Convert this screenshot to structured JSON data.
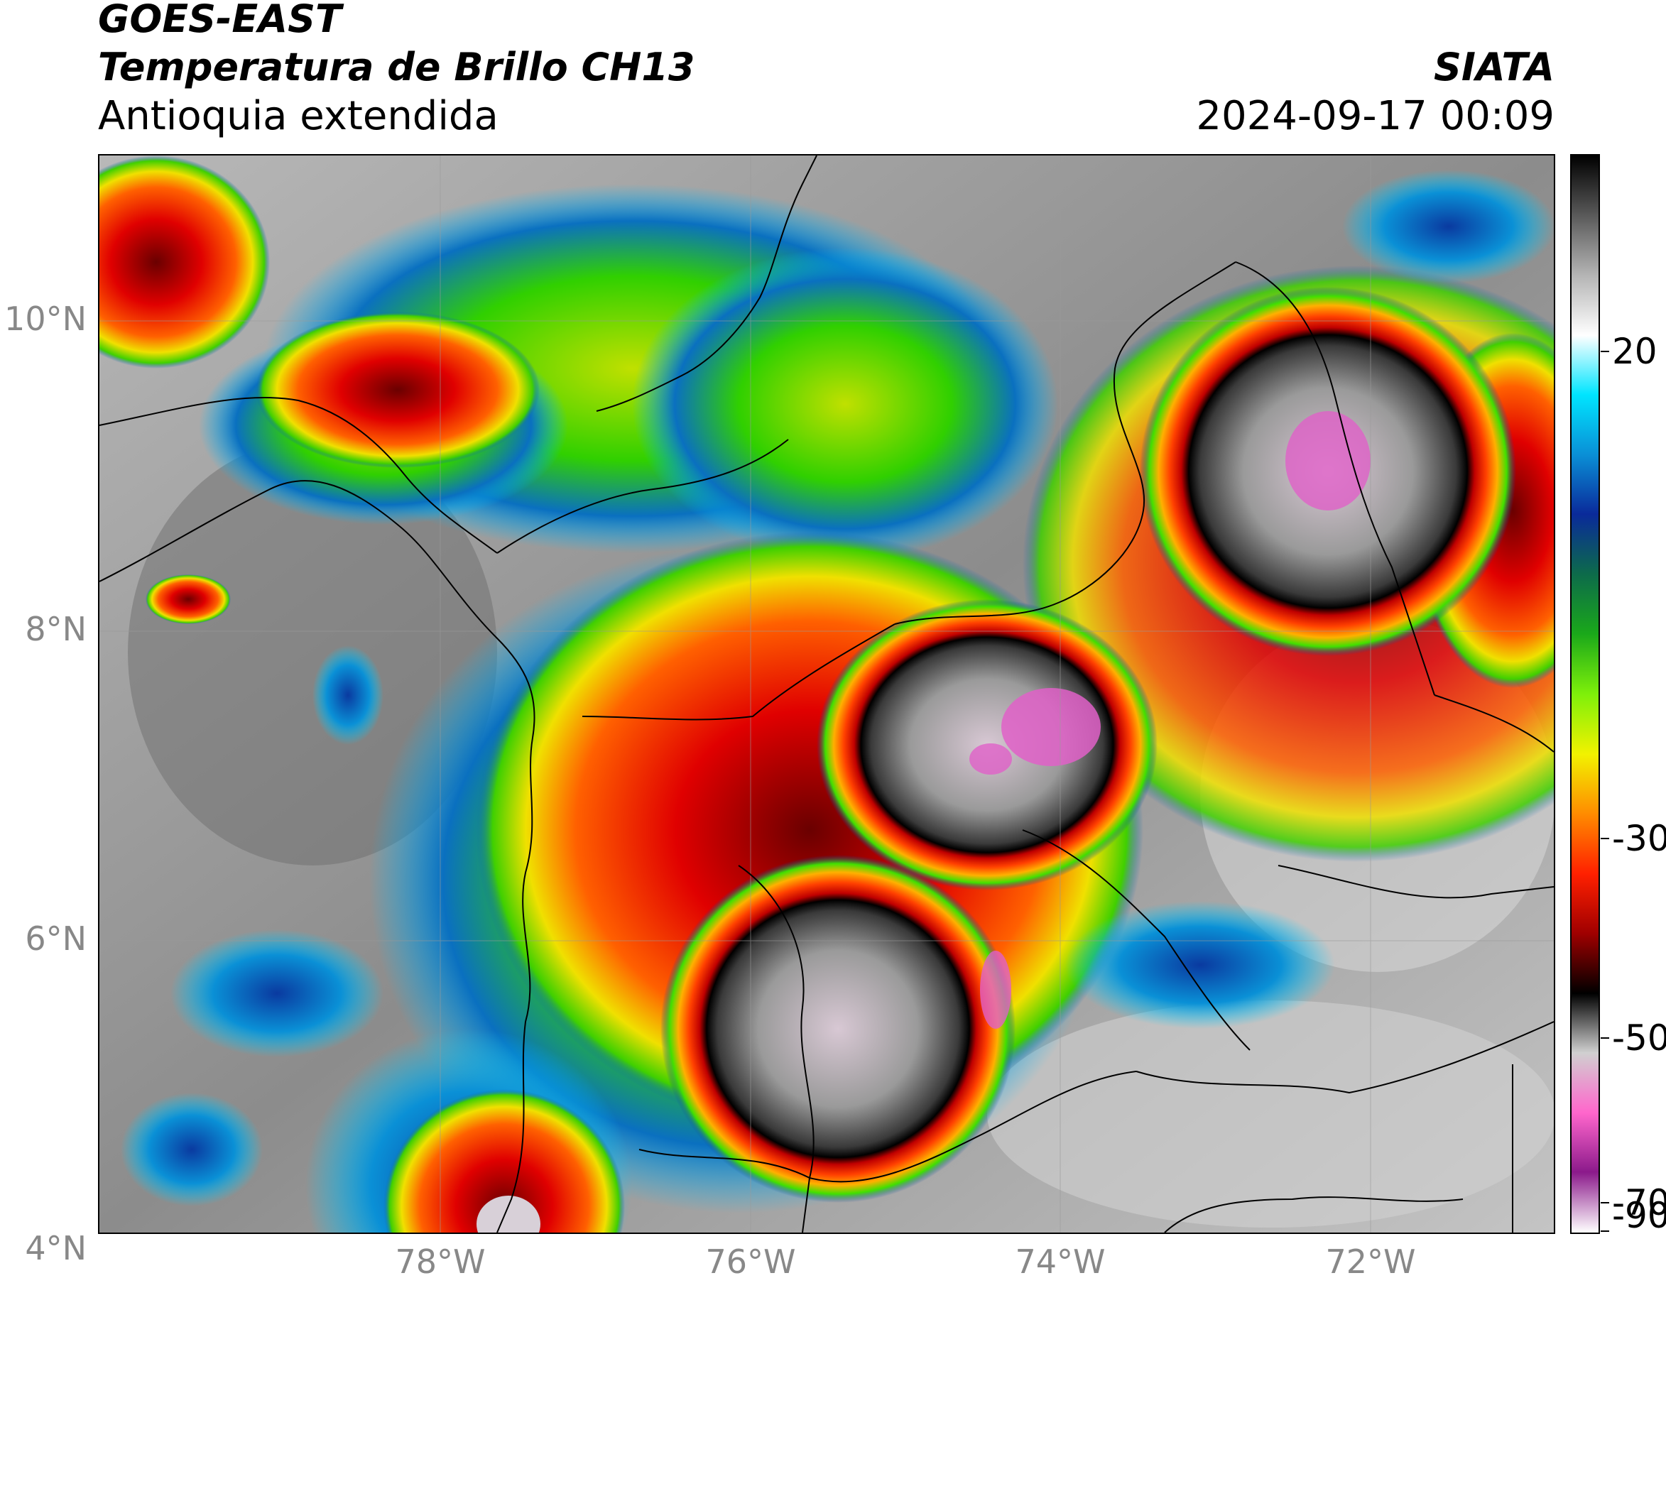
{
  "header": {
    "satellite": "GOES-EAST",
    "product": "Temperatura de Brillo CH13",
    "region": "Antioquia extendida",
    "agency": "SIATA",
    "datetime": "2024-09-17 00:09"
  },
  "map": {
    "lat_ticks": [
      "10°N",
      "8°N",
      "6°N",
      "4°N"
    ],
    "lon_ticks": [
      "78°W",
      "76°W",
      "74°W",
      "72°W"
    ]
  },
  "colorbar": {
    "labels": [
      "20",
      "-30",
      "-50",
      "-70",
      "-90"
    ],
    "stops": [
      "#000000",
      "#5a5a5a",
      "#b4b4b4",
      "#ffffff",
      "#00e5ff",
      "#0a8fd6",
      "#0a2a9a",
      "#0d6b4a",
      "#1aa81a",
      "#7ef00a",
      "#f2f200",
      "#ff8c00",
      "#ff2000",
      "#a00000",
      "#000000",
      "#d0d0d0",
      "#ff66cc",
      "#8b1a8b",
      "#ffffff"
    ]
  }
}
